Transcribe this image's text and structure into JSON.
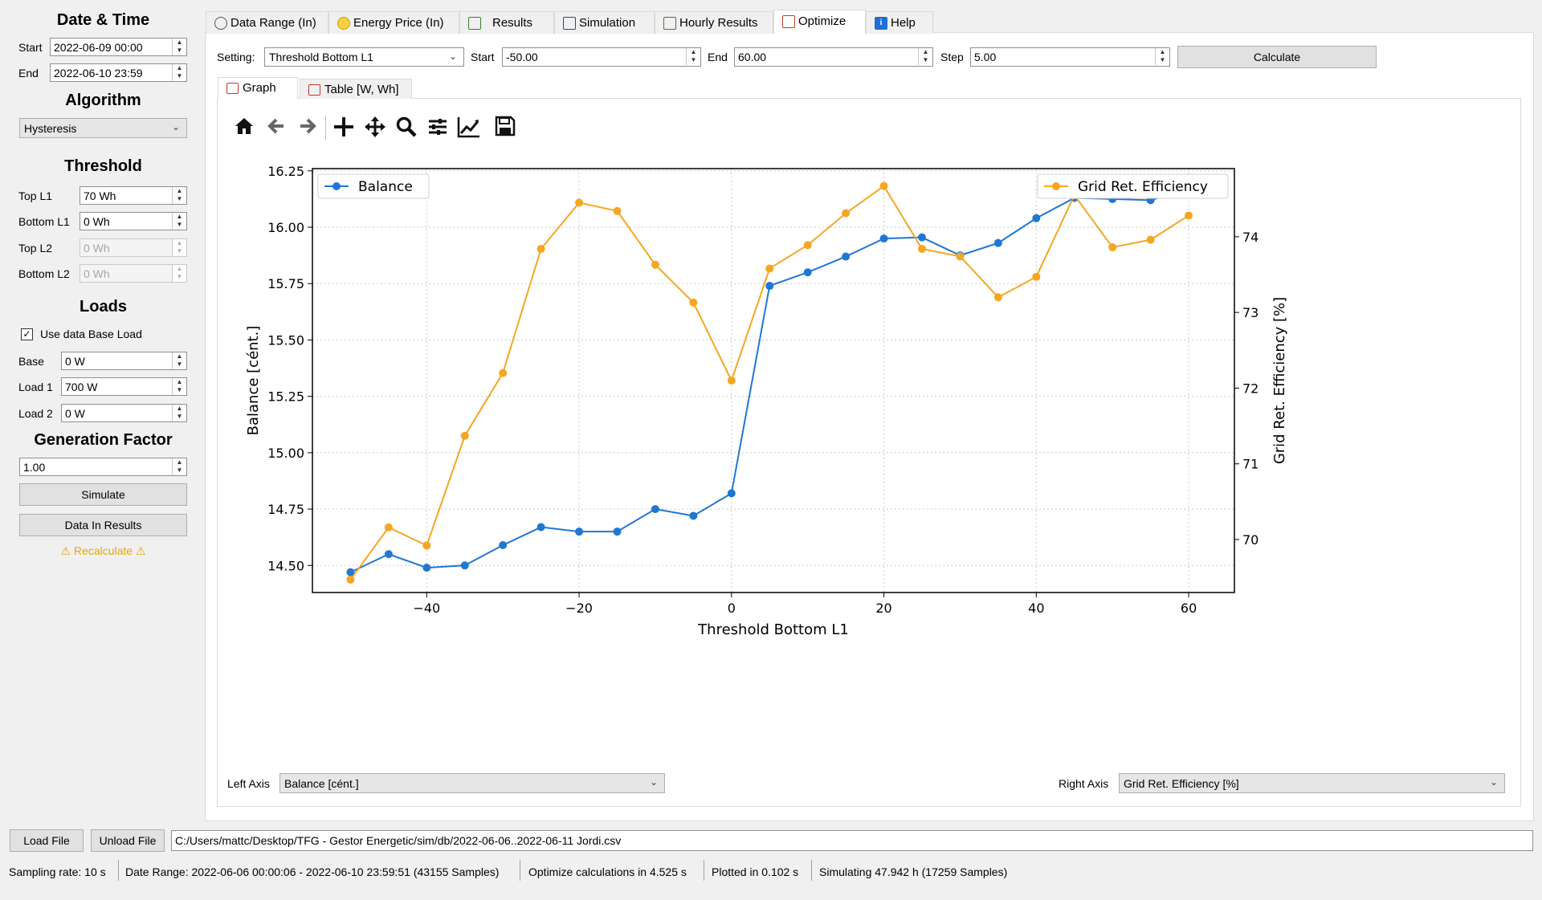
{
  "left": {
    "datetime_title": "Date & Time",
    "start_label": "Start",
    "start_value": "2022-06-09 00:00",
    "end_label": "End",
    "end_value": "2022-06-10 23:59",
    "algorithm_title": "Algorithm",
    "algorithm_value": "Hysteresis",
    "threshold_title": "Threshold",
    "top_l1_label": "Top L1",
    "top_l1_value": "70 Wh",
    "bottom_l1_label": "Bottom L1",
    "bottom_l1_value": "0 Wh",
    "top_l2_label": "Top L2",
    "top_l2_value": "0 Wh",
    "bottom_l2_label": "Bottom L2",
    "bottom_l2_value": "0 Wh",
    "loads_title": "Loads",
    "use_base_label": "Use data Base Load",
    "base_label": "Base",
    "base_value": "0 W",
    "load1_label": "Load 1",
    "load1_value": "700 W",
    "load2_label": "Load 2",
    "load2_value": "0 W",
    "genfactor_title": "Generation Factor",
    "genfactor_value": "1.00",
    "simulate_label": "Simulate",
    "data_in_results_label": "Data In Results",
    "recalculate_label": "Recalculate"
  },
  "tabs": [
    {
      "label": "Data Range (In)",
      "icon": "clock-icon"
    },
    {
      "label": "Energy Price (In)",
      "icon": "money-bag-icon"
    },
    {
      "label": "Results",
      "icon": "chart-table-icon"
    },
    {
      "label": "Simulation",
      "icon": "line-chart-icon"
    },
    {
      "label": "Hourly Results",
      "icon": "bar-chart-icon"
    },
    {
      "label": "Optimize",
      "icon": "optimize-chart-icon"
    },
    {
      "label": "Help",
      "icon": "info-icon"
    }
  ],
  "optimize": {
    "setting_label": "Setting:",
    "setting_value": "Threshold Bottom L1",
    "start_label": "Start",
    "start_value": "-50.00",
    "end_label": "End",
    "end_value": "60.00",
    "step_label": "Step",
    "step_value": "5.00",
    "calculate_label": "Calculate",
    "subtab_graph": "Graph",
    "subtab_table": "Table [W, Wh]",
    "left_axis_label": "Left Axis",
    "left_axis_value": "Balance [cént.]",
    "right_axis_label": "Right Axis",
    "right_axis_value": "Grid Ret. Efficiency [%]"
  },
  "toolbar_icons": [
    "home-icon",
    "back-arrow-icon",
    "forward-arrow-icon",
    "pan-icon",
    "move-icon",
    "zoom-icon",
    "configure-subplots-icon",
    "edit-axis-icon",
    "save-icon"
  ],
  "chart_data": {
    "type": "line",
    "xlabel": "Threshold Bottom L1",
    "ylabel": "Balance [cént.]",
    "y2label": "Grid Ret. Efficiency [%]",
    "x": [
      -50,
      -45,
      -40,
      -35,
      -30,
      -25,
      -20,
      -15,
      -10,
      -5,
      0,
      5,
      10,
      15,
      20,
      25,
      30,
      35,
      40,
      45,
      50,
      55,
      60
    ],
    "series": [
      {
        "name": "Balance",
        "axis": "left",
        "color": "#1f77d4",
        "values": [
          14.47,
          14.55,
          14.49,
          14.5,
          14.59,
          14.67,
          14.65,
          14.65,
          14.75,
          14.72,
          14.82,
          15.74,
          15.8,
          15.87,
          15.95,
          15.955,
          15.875,
          15.93,
          16.04,
          16.13,
          16.125,
          16.12,
          16.17
        ]
      },
      {
        "name": "Grid Ret. Efficiency",
        "axis": "right",
        "color": "#f5a623",
        "values": [
          69.47,
          70.16,
          69.92,
          71.37,
          72.2,
          73.84,
          74.45,
          74.34,
          73.63,
          73.13,
          72.1,
          73.58,
          73.89,
          74.31,
          74.67,
          73.84,
          73.74,
          73.2,
          73.47,
          74.55,
          73.86,
          73.96,
          74.28
        ]
      }
    ],
    "xticks": [
      -40,
      -20,
      0,
      20,
      40,
      60
    ],
    "xtick_labels": [
      "−40",
      "−20",
      "0",
      "20",
      "40",
      "60"
    ],
    "yticks": [
      14.5,
      14.75,
      15.0,
      15.25,
      15.5,
      15.75,
      16.0,
      16.25
    ],
    "ytick_labels": [
      "14.50",
      "14.75",
      "15.00",
      "15.25",
      "15.50",
      "15.75",
      "16.00",
      "16.25"
    ],
    "y2ticks": [
      70,
      71,
      72,
      73,
      74
    ],
    "y2tick_labels": [
      "70",
      "71",
      "72",
      "73",
      "74"
    ],
    "xlim": [
      -55,
      66
    ],
    "ylim": [
      14.38,
      16.26
    ],
    "y2lim": [
      69.3,
      74.9
    ],
    "grid": true,
    "legend_left": "top-left",
    "legend_right": "top-right"
  },
  "bottom": {
    "load_file_label": "Load File",
    "unload_file_label": "Unload File",
    "file_path": "C:/Users/mattc/Desktop/TFG - Gestor Energetic/sim/db/2022-06-06..2022-06-11 Jordi.csv",
    "status": [
      "Sampling rate: 10 s",
      "Date Range: 2022-06-06 00:00:06 - 2022-06-10 23:59:51 (43155 Samples)",
      "Optimize calculations in 4.525 s",
      "Plotted in 0.102 s",
      "Simulating 47.942 h (17259 Samples)"
    ]
  }
}
